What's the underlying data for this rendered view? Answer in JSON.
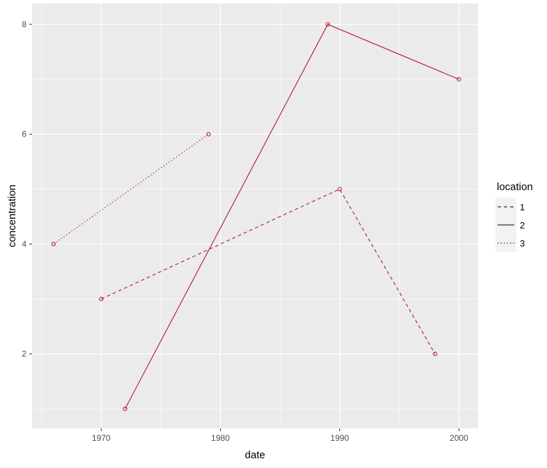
{
  "chart_data": {
    "type": "line",
    "title": "",
    "xlabel": "date",
    "ylabel": "concentration",
    "xlim": [
      1964.2,
      2001.6
    ],
    "ylim": [
      0.645,
      8.38
    ],
    "x_ticks": [
      1970,
      1980,
      1990,
      2000
    ],
    "y_ticks": [
      2,
      4,
      6,
      8
    ],
    "grid": true,
    "legend": {
      "title": "location",
      "placement": "right"
    },
    "line_color": "#b2182b",
    "series": [
      {
        "name": "1",
        "linetype": "dashed",
        "x": [
          1970,
          1990,
          1998
        ],
        "y": [
          3,
          5,
          2
        ]
      },
      {
        "name": "2",
        "linetype": "solid",
        "x": [
          1972,
          1989,
          2000
        ],
        "y": [
          1,
          8,
          7
        ]
      },
      {
        "name": "3",
        "linetype": "dotted",
        "x": [
          1966,
          1979
        ],
        "y": [
          4,
          6
        ]
      }
    ]
  }
}
